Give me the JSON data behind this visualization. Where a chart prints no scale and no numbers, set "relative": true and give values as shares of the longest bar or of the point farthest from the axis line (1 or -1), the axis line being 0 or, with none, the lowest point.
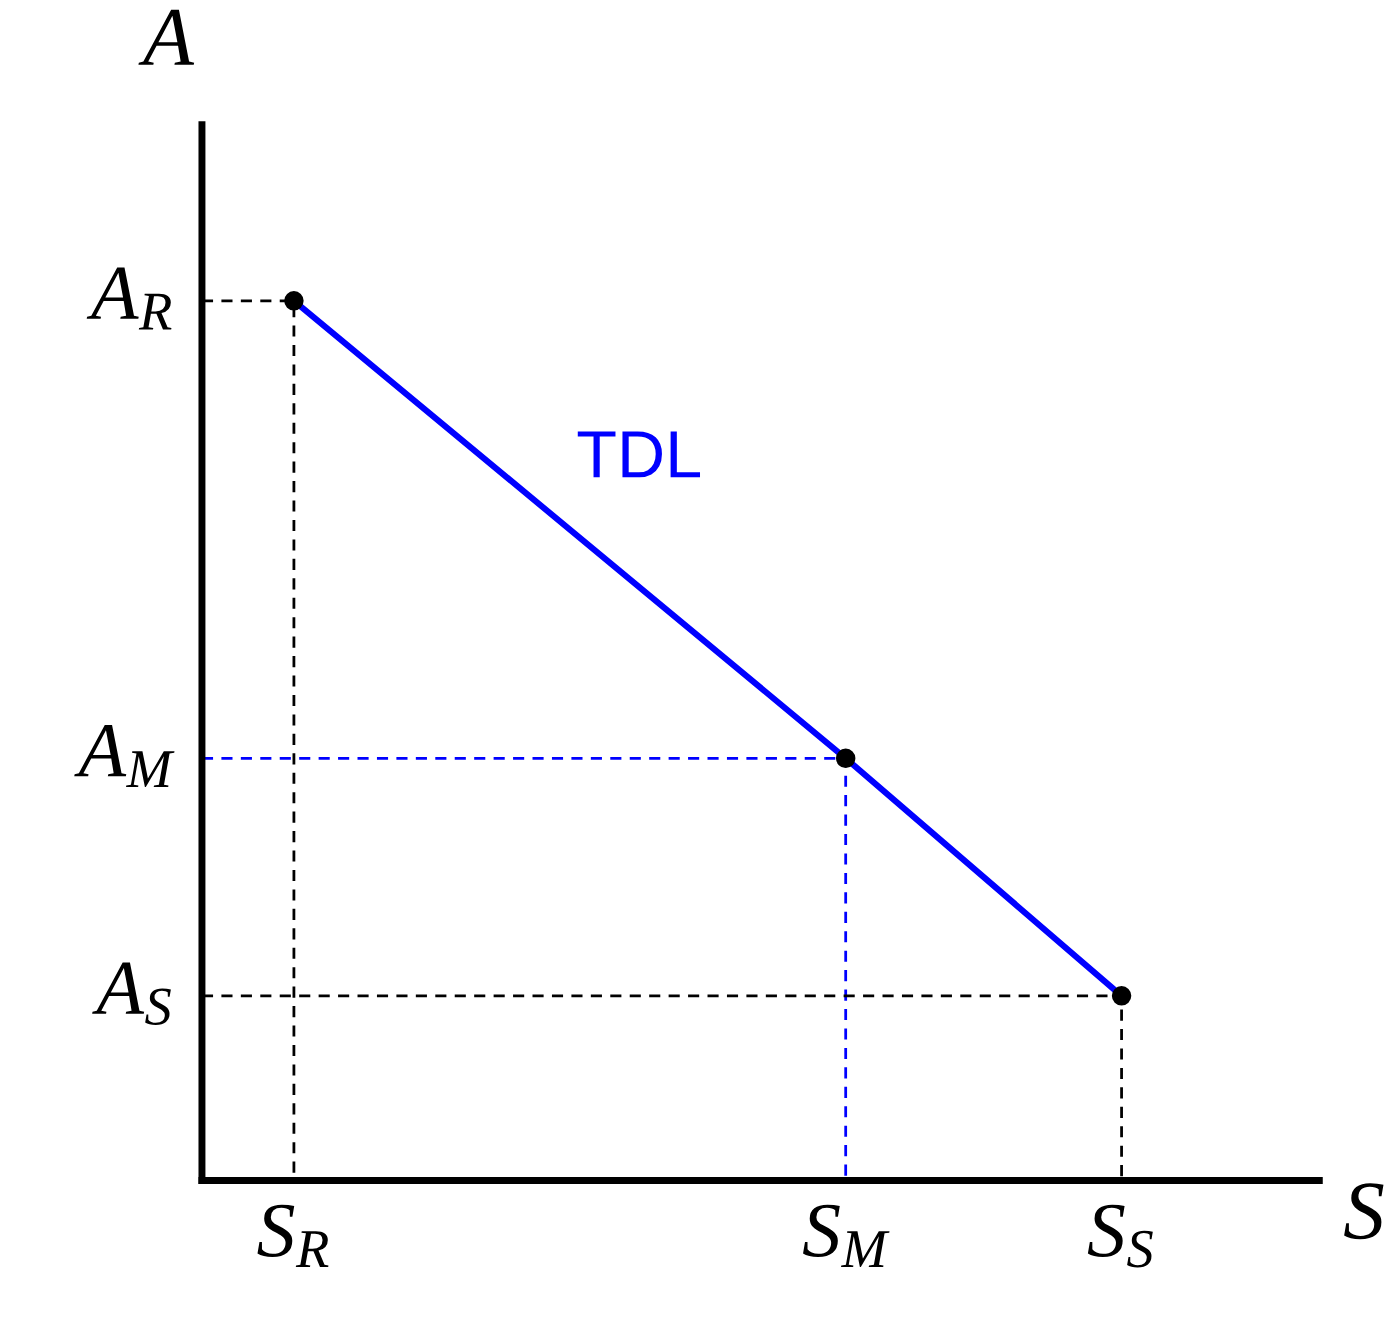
{
  "chart_data": {
    "type": "line",
    "relative": true,
    "xlabel": "S",
    "ylabel": "A",
    "categories": [
      "S$_{R}$",
      null,
      null,
      null,
      null,
      null,
      "S$_{M}$",
      null,
      null,
      "S$_{S}$"
    ],
    "series": [
      {
        "name": "TDL",
        "color": "#0000ff",
        "values": [
          1,
          null,
          null,
          null,
          null,
          null,
          0.48,
          null,
          null,
          0.21
        ]
      }
    ],
    "marker": "circle",
    "line_style": "solid",
    "legend": false,
    "ref_lines": [
      {
        "axis": "y",
        "value": 1,
        "label": "A$_{R}$",
        "color": "#000000",
        "line_style": "dashed"
      },
      {
        "axis": "y",
        "value": 0.48,
        "label": "A$_{M}$",
        "color": "#0000ff",
        "line_style": "dashed"
      },
      {
        "axis": "y",
        "value": 0.21,
        "label": "A$_{S}$",
        "color": "#000000",
        "line_style": "dashed"
      }
    ]
  }
}
